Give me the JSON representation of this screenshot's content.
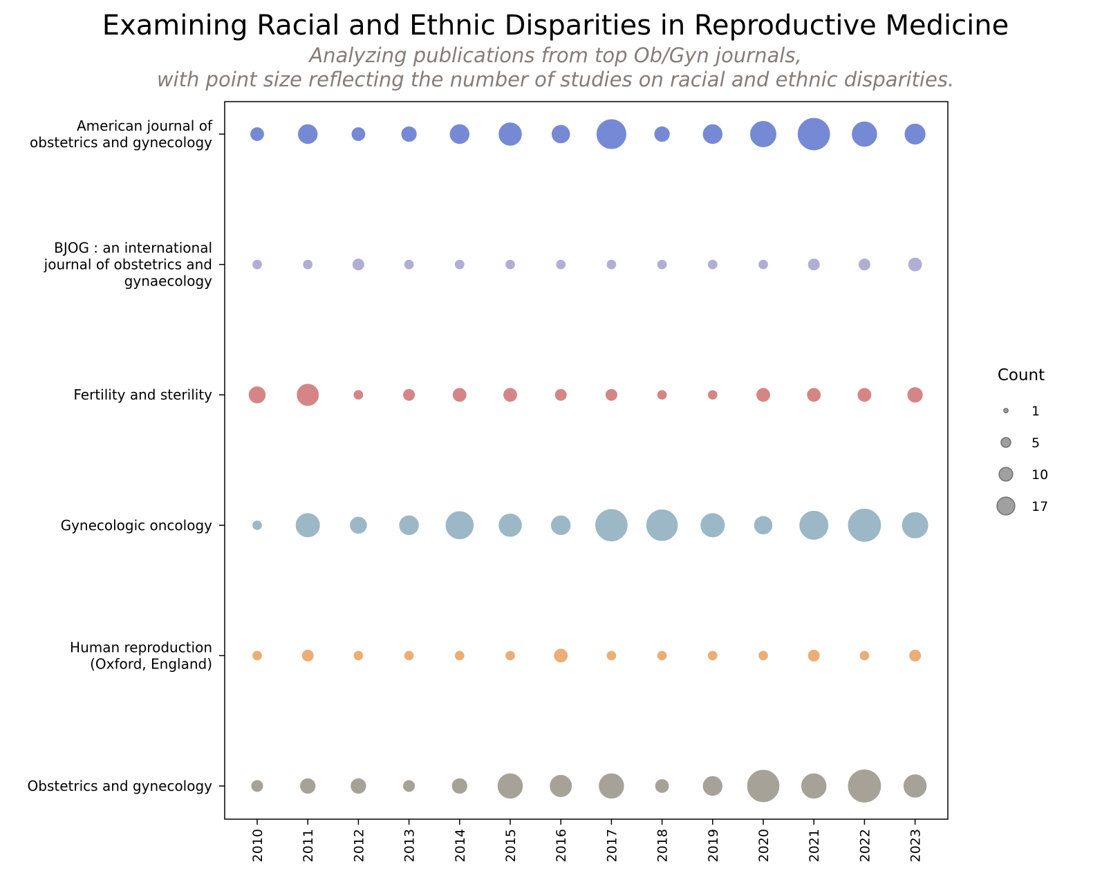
{
  "chart_data": {
    "type": "scatter",
    "title": "Examining Racial and Ethnic Disparities in Reproductive Medicine",
    "subtitle_lines": [
      "Analyzing publications from top Ob/Gyn journals,",
      "with point size reflecting the number of studies on racial and ethnic disparities."
    ],
    "x": [
      "2010",
      "2011",
      "2012",
      "2013",
      "2014",
      "2015",
      "2016",
      "2017",
      "2018",
      "2019",
      "2020",
      "2021",
      "2022",
      "2023"
    ],
    "series": [
      {
        "name": "American journal of obstetrics and gynecology",
        "label_lines": [
          "American journal of",
          "obstetrics and gynecology"
        ],
        "color": "#6a80d2",
        "values": [
          4,
          8,
          4,
          5,
          8,
          11,
          7,
          18,
          5,
          8,
          14,
          21,
          13,
          9
        ]
      },
      {
        "name": "BJOG : an international journal of obstetrics and gynaecology",
        "label_lines": [
          "BJOG : an international",
          "journal of obstetrics and",
          "gynaecology"
        ],
        "color": "#aaa8d0",
        "values": [
          2,
          2,
          3,
          2,
          2,
          2,
          2,
          2,
          2,
          2,
          2,
          3,
          3,
          4
        ]
      },
      {
        "name": "Fertility and sterility",
        "label_lines": [
          "Fertility and sterility"
        ],
        "color": "#d27c7c",
        "values": [
          6,
          10,
          2,
          3,
          4,
          4,
          3,
          3,
          2,
          2,
          4,
          4,
          4,
          5
        ]
      },
      {
        "name": "Gynecologic oncology",
        "label_lines": [
          "Gynecologic oncology"
        ],
        "color": "#94b3c3",
        "values": [
          2,
          12,
          6,
          8,
          16,
          11,
          8,
          21,
          20,
          12,
          7,
          17,
          22,
          14
        ]
      },
      {
        "name": "Human reproduction (Oxford, England)",
        "label_lines": [
          "Human reproduction",
          "(Oxford, England)"
        ],
        "color": "#e8a86c",
        "values": [
          2,
          3,
          2,
          2,
          2,
          2,
          4,
          2,
          2,
          2,
          2,
          3,
          2,
          3
        ]
      },
      {
        "name": "Obstetrics and gynecology",
        "label_lines": [
          "Obstetrics and gynecology"
        ],
        "color": "#a09b90",
        "values": [
          3,
          5,
          5,
          3,
          5,
          13,
          10,
          13,
          4,
          8,
          21,
          13,
          22,
          11
        ]
      }
    ],
    "legend": {
      "title": "Count",
      "position": "right",
      "labels": [
        "1",
        "5",
        "10",
        "17"
      ],
      "values": [
        1,
        5,
        10,
        17
      ],
      "color": "#8f8f8f"
    },
    "grid": false
  }
}
